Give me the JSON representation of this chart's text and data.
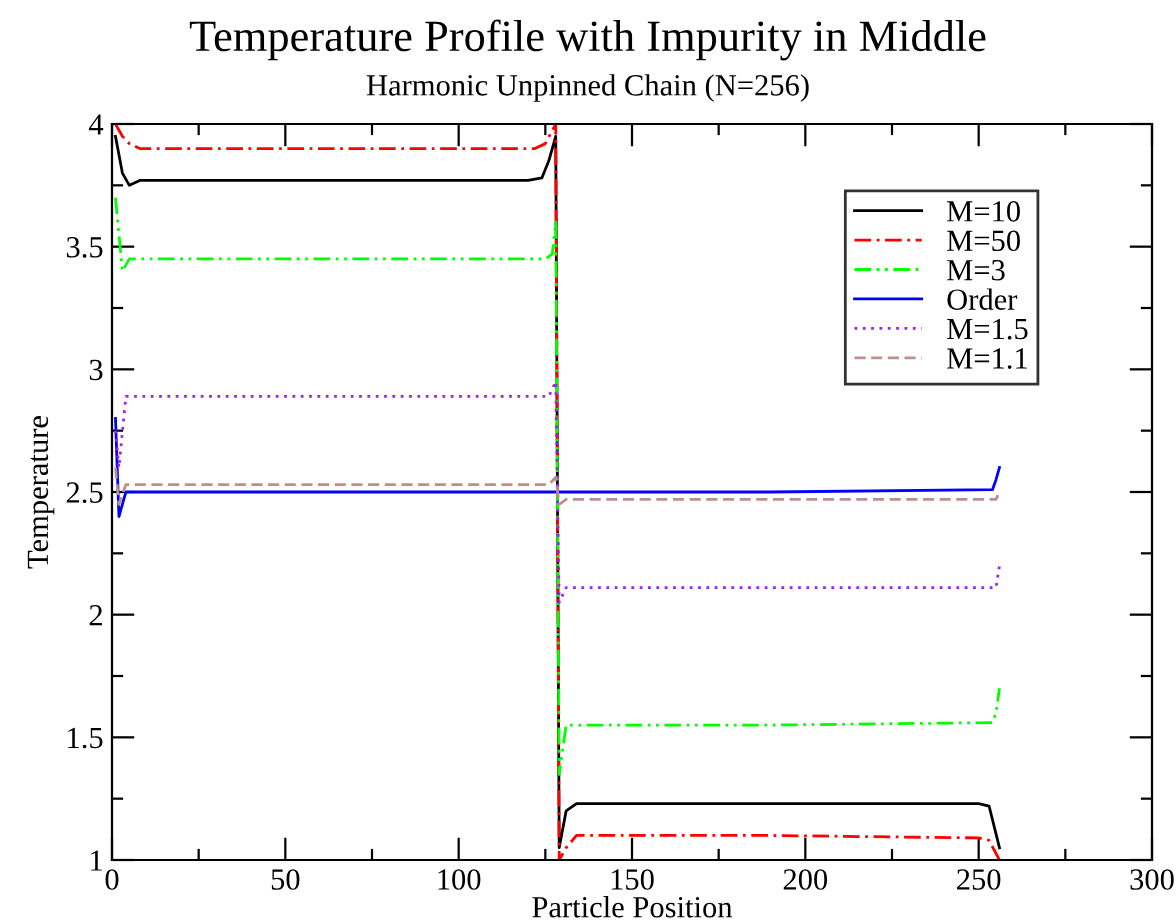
{
  "chart_data": {
    "type": "line",
    "title": "Temperature Profile with Impurity in Middle",
    "subtitle": "Harmonic Unpinned Chain (N=256)",
    "xlabel": "Particle Position",
    "ylabel": "Temperature",
    "xlim": [
      0,
      300
    ],
    "ylim": [
      1,
      4
    ],
    "xticks": [
      0,
      {
        "value": 25,
        "label": null
      },
      50,
      {
        "value": 75,
        "label": null
      },
      100,
      {
        "value": 125,
        "label": null
      },
      150,
      {
        "value": 175,
        "label": null
      },
      200,
      {
        "value": 225,
        "label": null
      },
      250,
      {
        "value": 275,
        "label": null
      },
      300
    ],
    "yticks": [
      1,
      {
        "value": 1.25,
        "label": null
      },
      1.5,
      {
        "value": 1.75,
        "label": null
      },
      2,
      {
        "value": 2.25,
        "label": null
      },
      2.5,
      {
        "value": 2.75,
        "label": null
      },
      3,
      {
        "value": 3.25,
        "label": null
      },
      3.5,
      {
        "value": 3.75,
        "label": null
      },
      4
    ],
    "grid": false,
    "legend": "top right",
    "marker": "none",
    "series": [
      {
        "name": "M=10",
        "color": "#000000",
        "line_style": "solid",
        "x": [
          1,
          3,
          5,
          8,
          60,
          120,
          124,
          126,
          128,
          129,
          131,
          134,
          190,
          250,
          253,
          256
        ],
        "values": [
          3.95,
          3.8,
          3.75,
          3.77,
          3.77,
          3.77,
          3.78,
          3.85,
          3.95,
          1.05,
          1.2,
          1.23,
          1.23,
          1.23,
          1.22,
          1.05
        ]
      },
      {
        "name": "M=50",
        "color": "#ff0000",
        "line_style": "dashdot",
        "x": [
          1,
          3,
          5,
          8,
          60,
          122,
          125,
          128,
          129,
          131,
          134,
          190,
          250,
          253,
          256
        ],
        "values": [
          4.0,
          3.95,
          3.92,
          3.9,
          3.9,
          3.9,
          3.92,
          4.0,
          1.0,
          1.05,
          1.1,
          1.1,
          1.09,
          1.08,
          1.0
        ]
      },
      {
        "name": "M=3",
        "color": "#00ff00",
        "line_style": "dashdotdot",
        "x": [
          1,
          3,
          5,
          60,
          125,
          127,
          128,
          129,
          131,
          190,
          254,
          255,
          256
        ],
        "values": [
          3.7,
          3.4,
          3.45,
          3.45,
          3.45,
          3.47,
          3.6,
          1.35,
          1.55,
          1.55,
          1.56,
          1.6,
          1.7
        ]
      },
      {
        "name": "Order",
        "color": "#0000ff",
        "line_style": "solid",
        "x": [
          1,
          2,
          4,
          60,
          128,
          129,
          190,
          254,
          255,
          256
        ],
        "values": [
          2.8,
          2.4,
          2.5,
          2.5,
          2.5,
          2.5,
          2.5,
          2.51,
          2.55,
          2.6
        ]
      },
      {
        "name": "M=1.5",
        "color": "#a020f0",
        "line_style": "dotted",
        "x": [
          1,
          2,
          4,
          60,
          126,
          128,
          129,
          131,
          190,
          255,
          256
        ],
        "values": [
          2.75,
          2.6,
          2.89,
          2.89,
          2.89,
          2.95,
          2.05,
          2.11,
          2.11,
          2.11,
          2.2
        ]
      },
      {
        "name": "M=1.1",
        "color": "#bc8f8f",
        "line_style": "dashed",
        "x": [
          1,
          2,
          4,
          60,
          126,
          128,
          129,
          131,
          190,
          255,
          256
        ],
        "values": [
          2.6,
          2.45,
          2.53,
          2.53,
          2.53,
          2.56,
          2.45,
          2.47,
          2.47,
          2.47,
          2.5
        ]
      }
    ]
  }
}
